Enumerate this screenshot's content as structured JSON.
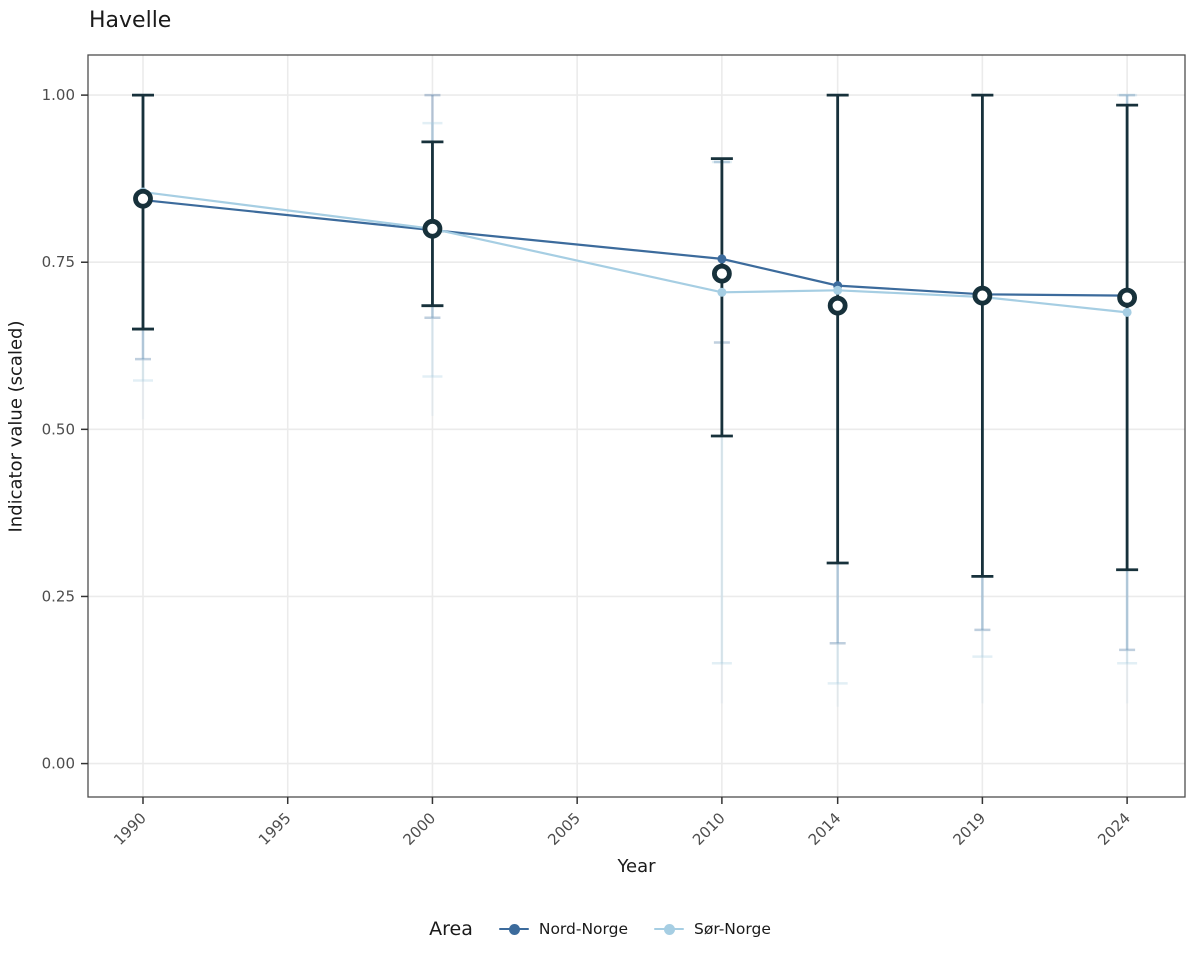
{
  "chart_data": {
    "type": "line",
    "title": "Havelle",
    "xlabel": "Year",
    "ylabel": "Indicator value (scaled)",
    "x_ticks": [
      "1990",
      "1995",
      "2000",
      "2005",
      "2010",
      "2014",
      "2019",
      "2024"
    ],
    "x_tick_years": [
      1990,
      1995,
      2000,
      2005,
      2010,
      2014,
      2019,
      2024
    ],
    "y_ticks": [
      "0.00",
      "0.25",
      "0.50",
      "0.75",
      "1.00"
    ],
    "y_tick_values": [
      0.0,
      0.25,
      0.5,
      0.75,
      1.0
    ],
    "xlim": [
      1988.1,
      2026.0
    ],
    "ylim": [
      -0.05,
      1.06
    ],
    "grid": "major-only",
    "x": [
      1990,
      2000,
      2010,
      2014,
      2019,
      2024
    ],
    "series": [
      {
        "name": "Nord-Norge",
        "color": "#3c6b9c",
        "values": [
          0.843,
          0.798,
          0.755,
          0.715,
          0.702,
          0.7
        ],
        "ci_low": [
          0.605,
          0.667,
          0.63,
          0.18,
          0.2,
          0.17
        ],
        "ci_high": [
          1.0,
          1.0,
          0.9,
          1.0,
          1.0,
          1.0
        ]
      },
      {
        "name": "Sør-Norge",
        "color": "#a6cee3",
        "values": [
          0.855,
          0.8,
          0.705,
          0.708,
          0.698,
          0.675
        ],
        "ci_low": [
          0.573,
          0.579,
          0.15,
          0.12,
          0.16,
          0.15
        ],
        "ci_high": [
          1.0,
          0.958,
          0.9,
          1.0,
          1.0,
          1.0
        ],
        "ci_fade_to": [
          0.515,
          0.52,
          0.09,
          0.085,
          0.09,
          0.09
        ]
      }
    ],
    "overall_markers": {
      "style": "open-circle",
      "color": "#17313b",
      "values": [
        0.845,
        0.8,
        0.733,
        0.685,
        0.7,
        0.697
      ],
      "ci_low": [
        0.65,
        0.685,
        0.49,
        0.3,
        0.28,
        0.29
      ],
      "ci_high": [
        1.0,
        0.93,
        0.905,
        1.0,
        1.0,
        0.985
      ]
    },
    "legend": {
      "title": "Area",
      "position": "bottom"
    },
    "colors": {
      "grid": "#ebebeb",
      "panel_border": "#4d4d4d",
      "tick_text": "#4d4d4d",
      "tick_mark": "#333333",
      "title_text": "#1a1a1a"
    }
  }
}
